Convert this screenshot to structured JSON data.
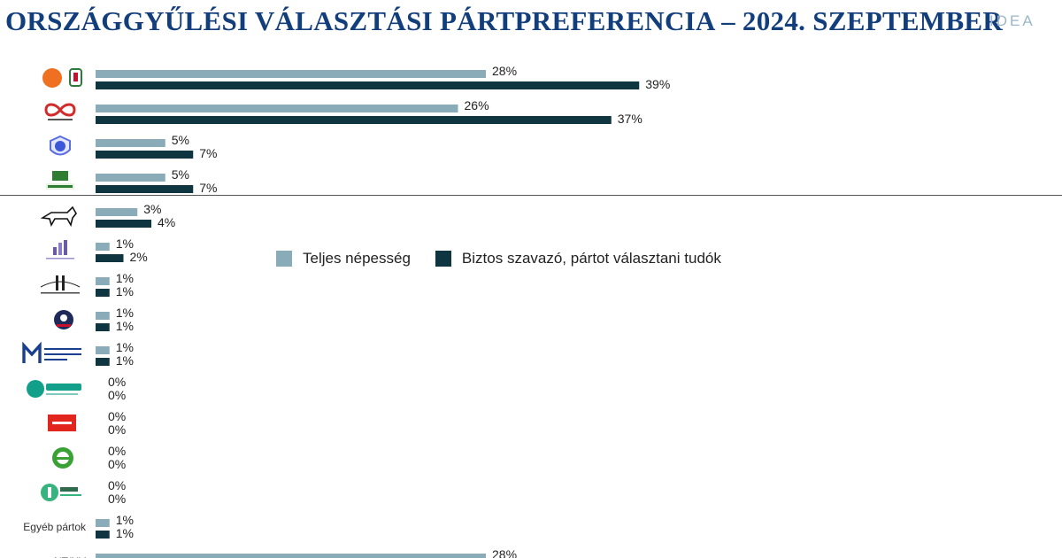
{
  "page": {
    "title": "ORSZÁGGYŰLÉSI VÁLASZTÁSI PÁRTPREFERENCIA – 2024. SZEPTEMBER",
    "brand": "IDEA"
  },
  "colors": {
    "series_total": "#8aacb8",
    "series_sure": "#0f3540",
    "title": "#123e7c"
  },
  "chart_data": {
    "type": "bar",
    "orientation": "horizontal",
    "categories": [
      {
        "icon": "fidesz-kdnp-logo"
      },
      {
        "icon": "tisza-part-logo"
      },
      {
        "icon": "dk-logo"
      },
      {
        "icon": "mi-hazank-logo"
      },
      {
        "icon": "mkkp-dog-logo"
      },
      {
        "icon": "momentum-logo"
      },
      {
        "icon": "bridge-logo"
      },
      {
        "icon": "round-emblem-logo"
      },
      {
        "icon": "mindenki-magyarorszaga-logo"
      },
      {
        "icon": "jobbik-logo"
      },
      {
        "icon": "mszp-logo"
      },
      {
        "icon": "parbeszed-zoldek-logo"
      },
      {
        "icon": "lmp-logo"
      },
      {
        "label": "Egyéb pártok"
      },
      {
        "label": "NT/NV"
      }
    ],
    "series": [
      {
        "name": "Teljes népesség",
        "color": "#8aacb8",
        "values": [
          28,
          26,
          5,
          5,
          3,
          1,
          1,
          1,
          1,
          0,
          0,
          0,
          0,
          1,
          28
        ]
      },
      {
        "name": "Biztos szavazó, pártot választani tudók",
        "color": "#0f3540",
        "values": [
          39,
          37,
          7,
          7,
          4,
          2,
          1,
          1,
          1,
          0,
          0,
          0,
          0,
          1,
          null
        ]
      }
    ],
    "value_suffix": "%",
    "xlim": [
      0,
      40
    ],
    "grid": false,
    "legend": "middle-right"
  }
}
